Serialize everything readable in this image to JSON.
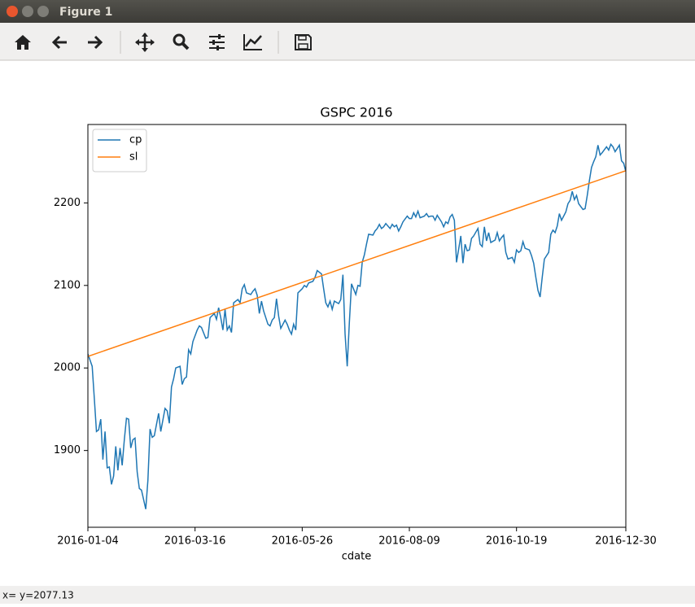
{
  "window": {
    "title": "Figure 1",
    "status": "x= y=2077.13"
  },
  "chart_data": {
    "type": "line",
    "title": "GSPC 2016",
    "xlabel": "cdate",
    "xlim": [
      0,
      251
    ],
    "ylim": [
      1807,
      2295
    ],
    "xticks": [
      {
        "value": 0,
        "label": "2016-01-04"
      },
      {
        "value": 50,
        "label": "2016-03-16"
      },
      {
        "value": 100,
        "label": "2016-05-26"
      },
      {
        "value": 150,
        "label": "2016-08-09"
      },
      {
        "value": 200,
        "label": "2016-10-19"
      },
      {
        "value": 251,
        "label": "2016-12-30"
      }
    ],
    "yticks": [
      1900,
      2000,
      2100,
      2200
    ],
    "grid": false,
    "legend": "upper left",
    "series": [
      {
        "name": "cp",
        "color": "#1f77b4",
        "x": [
          0,
          2,
          3,
          4,
          5,
          6,
          7,
          8,
          9,
          10,
          11,
          12,
          13,
          14,
          15,
          16,
          17,
          18,
          19,
          20,
          21,
          22,
          23,
          24,
          25,
          27,
          28,
          29,
          30,
          31,
          33,
          34,
          36,
          37,
          38,
          39,
          40,
          41,
          43,
          44,
          45,
          46,
          47,
          48,
          49,
          51,
          52,
          53,
          55,
          56,
          57,
          59,
          60,
          61,
          62,
          63,
          64,
          65,
          66,
          67,
          68,
          70,
          71,
          72,
          73,
          74,
          76,
          77,
          78,
          79,
          80,
          81,
          82,
          84,
          85,
          86,
          87,
          88,
          89,
          90,
          92,
          93,
          94,
          95,
          96,
          97,
          98,
          100,
          101,
          102,
          103,
          104,
          105,
          106,
          107,
          109,
          110,
          111,
          112,
          113,
          114,
          115,
          117,
          118,
          119,
          120,
          121,
          122,
          123,
          125,
          126,
          127,
          128,
          129,
          130,
          131,
          133,
          134,
          135,
          136,
          137,
          138,
          139,
          141,
          142,
          143,
          144,
          145,
          146,
          147,
          149,
          150,
          151,
          152,
          153,
          154,
          155,
          157,
          158,
          159,
          160,
          161,
          162,
          163,
          165,
          166,
          167,
          168,
          169,
          170,
          171,
          172,
          174,
          175,
          176,
          177,
          178,
          179,
          180,
          182,
          183,
          184,
          185,
          186,
          187,
          188,
          190,
          191,
          192,
          193,
          194,
          195,
          196,
          198,
          199,
          200,
          201,
          202,
          203,
          204,
          206,
          207,
          208,
          209,
          210,
          211,
          212,
          213,
          215,
          216,
          217,
          218,
          219,
          220,
          221,
          223,
          224,
          225,
          226,
          227,
          228,
          229,
          231,
          232,
          233,
          234,
          235,
          236,
          237,
          238,
          239,
          240,
          242,
          243,
          244,
          245,
          246,
          247,
          248,
          249,
          250,
          251
        ],
        "values": [
          2017,
          2002,
          1963,
          1923,
          1925,
          1938,
          1889,
          1923,
          1879,
          1880,
          1859,
          1869,
          1905,
          1876,
          1903,
          1882,
          1913,
          1939,
          1938,
          1903,
          1913,
          1915,
          1874,
          1854,
          1852,
          1829,
          1864,
          1926,
          1916,
          1918,
          1945,
          1923,
          1951,
          1948,
          1933,
          1977,
          1987,
          2000,
          2002,
          1980,
          1987,
          1989,
          2022,
          2017,
          2032,
          2046,
          2051,
          2049,
          2036,
          2037,
          2061,
          2066,
          2059,
          2073,
          2061,
          2046,
          2071,
          2046,
          2051,
          2043,
          2079,
          2083,
          2079,
          2096,
          2101,
          2091,
          2089,
          2093,
          2096,
          2088,
          2066,
          2081,
          2069,
          2053,
          2051,
          2058,
          2061,
          2084,
          2063,
          2048,
          2058,
          2053,
          2046,
          2041,
          2053,
          2046,
          2091,
          2096,
          2100,
          2098,
          2103,
          2104,
          2105,
          2110,
          2118,
          2114,
          2096,
          2079,
          2074,
          2081,
          2071,
          2081,
          2078,
          2083,
          2113,
          2041,
          2002,
          2055,
          2102,
          2089,
          2100,
          2099,
          2128,
          2137,
          2150,
          2162,
          2161,
          2166,
          2169,
          2174,
          2169,
          2171,
          2175,
          2169,
          2174,
          2171,
          2173,
          2166,
          2171,
          2177,
          2184,
          2181,
          2181,
          2188,
          2183,
          2190,
          2182,
          2184,
          2187,
          2183,
          2184,
          2184,
          2179,
          2185,
          2177,
          2171,
          2177,
          2175,
          2183,
          2186,
          2179,
          2128,
          2160,
          2127,
          2150,
          2142,
          2143,
          2157,
          2160,
          2169,
          2150,
          2147,
          2171,
          2154,
          2164,
          2152,
          2155,
          2164,
          2154,
          2158,
          2161,
          2140,
          2132,
          2134,
          2128,
          2143,
          2140,
          2142,
          2153,
          2145,
          2143,
          2136,
          2127,
          2110,
          2094,
          2086,
          2110,
          2132,
          2140,
          2162,
          2167,
          2164,
          2172,
          2187,
          2179,
          2189,
          2199,
          2203,
          2214,
          2204,
          2209,
          2199,
          2192,
          2193,
          2209,
          2227,
          2243,
          2250,
          2256,
          2270,
          2258,
          2261,
          2268,
          2264,
          2271,
          2268,
          2262,
          2266,
          2270,
          2251,
          2248,
          2238
        ]
      },
      {
        "name": "sl",
        "color": "#ff7f0e",
        "x": [
          0,
          251
        ],
        "values": [
          2014,
          2239
        ]
      }
    ]
  }
}
